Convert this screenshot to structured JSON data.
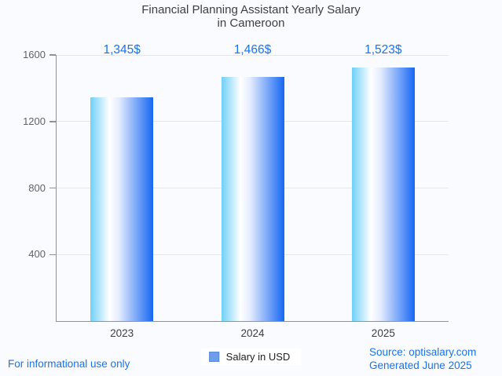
{
  "title": {
    "line1": "Financial Planning Assistant Yearly Salary",
    "line2": "in Cameroon"
  },
  "chart_data": {
    "type": "bar",
    "title": "Financial Planning Assistant Yearly Salary in Cameroon",
    "categories": [
      "2023",
      "2024",
      "2025"
    ],
    "values": [
      1345,
      1466,
      1523
    ],
    "value_labels": [
      "1,345$",
      "1,466$",
      "1,523$"
    ],
    "ylim": [
      0,
      1600
    ],
    "yticks": [
      400,
      800,
      1200,
      1600
    ],
    "grid": true,
    "legend": {
      "label": "Salary in USD",
      "position": "bottom"
    }
  },
  "footer": {
    "left": "For informational use only",
    "source": "Source: optisalary.com",
    "generated": "Generated June 2025"
  },
  "colors": {
    "accent_blue": "#1a73e8",
    "legend_swatch": "#6d9eeb",
    "bar_gradient_left": "#6fd0f8",
    "bar_gradient_white": "#ffffff",
    "bar_gradient_mid": "#e3ebfe",
    "bar_gradient_right": "#1667f3",
    "background": "#fafbfe",
    "gridline": "#e4e6ea",
    "axis_line": "#8e9297"
  }
}
